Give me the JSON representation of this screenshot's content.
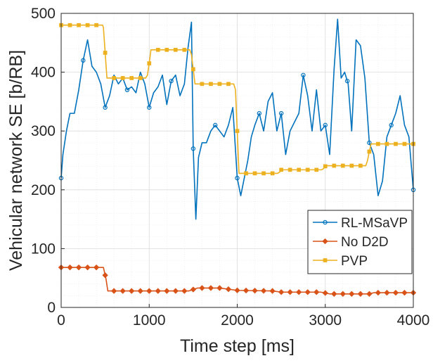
{
  "chart_data": {
    "type": "line",
    "title": "",
    "xlabel": "Time step [ms]",
    "ylabel": "Vehicular network SE [b/RB]",
    "xlim": [
      0,
      4000
    ],
    "ylim": [
      0,
      500
    ],
    "xticks": [
      0,
      1000,
      2000,
      3000,
      4000
    ],
    "yticks": [
      0,
      100,
      200,
      300,
      400,
      500
    ],
    "x_tick_labels": [
      "0",
      "1000",
      "2000",
      "3000",
      "4000"
    ],
    "y_tick_labels": [
      "0",
      "100",
      "200",
      "300",
      "400",
      "500"
    ],
    "grid": true,
    "legend_position": "bottom-right",
    "series": [
      {
        "name": "RL-MSaVP",
        "color": "#0072BD",
        "marker": "circle",
        "x": [
          0,
          20,
          60,
          100,
          150,
          200,
          250,
          300,
          350,
          400,
          450,
          500,
          550,
          600,
          650,
          700,
          750,
          800,
          850,
          900,
          950,
          1000,
          1050,
          1100,
          1150,
          1200,
          1250,
          1300,
          1350,
          1400,
          1440,
          1480,
          1500,
          1530,
          1560,
          1600,
          1650,
          1700,
          1750,
          1800,
          1850,
          1900,
          1950,
          2000,
          2040,
          2080,
          2120,
          2160,
          2200,
          2250,
          2300,
          2350,
          2400,
          2450,
          2500,
          2550,
          2600,
          2650,
          2700,
          2750,
          2800,
          2850,
          2900,
          2950,
          3000,
          3050,
          3100,
          3140,
          3180,
          3220,
          3260,
          3300,
          3350,
          3400,
          3450,
          3500,
          3550,
          3600,
          3650,
          3700,
          3750,
          3800,
          3850,
          3900,
          3950,
          4000
        ],
        "y": [
          220,
          260,
          300,
          330,
          330,
          370,
          420,
          455,
          410,
          400,
          380,
          340,
          360,
          395,
          380,
          390,
          370,
          375,
          365,
          400,
          380,
          340,
          365,
          375,
          395,
          345,
          385,
          395,
          360,
          380,
          440,
          485,
          270,
          150,
          255,
          280,
          280,
          300,
          310,
          300,
          290,
          310,
          340,
          220,
          190,
          220,
          250,
          290,
          310,
          330,
          300,
          350,
          365,
          300,
          330,
          260,
          300,
          315,
          330,
          395,
          360,
          300,
          370,
          300,
          310,
          260,
          405,
          490,
          390,
          400,
          380,
          300,
          455,
          445,
          390,
          280,
          260,
          190,
          215,
          290,
          310,
          330,
          360,
          310,
          290,
          200
        ],
        "marked_x": [
          0,
          250,
          500,
          750,
          1000,
          1250,
          1500,
          1750,
          2000,
          2250,
          2500,
          2750,
          3000,
          3250,
          3500,
          3750,
          4000
        ]
      },
      {
        "name": "No D2D",
        "color": "#D95319",
        "marker": "diamond",
        "x": [
          0,
          480,
          510,
          530,
          1450,
          1550,
          1800,
          2000,
          2400,
          2500,
          2950,
          3050,
          3500,
          3550,
          4000
        ],
        "y": [
          68,
          68,
          48,
          28,
          28,
          33,
          33,
          29,
          28,
          26,
          26,
          23,
          23,
          25,
          25
        ],
        "marked_x": [
          0,
          100,
          200,
          300,
          400,
          500,
          600,
          700,
          800,
          900,
          1000,
          1100,
          1200,
          1300,
          1400,
          1500,
          1600,
          1700,
          1800,
          1900,
          2000,
          2100,
          2200,
          2300,
          2400,
          2500,
          2600,
          2700,
          2800,
          2900,
          3000,
          3100,
          3200,
          3300,
          3400,
          3500,
          3600,
          3700,
          3800,
          3900,
          4000
        ]
      },
      {
        "name": "PVP",
        "color": "#EDB120",
        "marker": "square",
        "x": [
          0,
          470,
          480,
          500,
          520,
          960,
          980,
          1000,
          1020,
          1460,
          1480,
          1500,
          1520,
          1960,
          1980,
          2000,
          2020,
          2460,
          2480,
          2500,
          2520,
          2960,
          2980,
          3000,
          3020,
          3460,
          3480,
          3500,
          3520,
          4000
        ],
        "y": [
          480,
          480,
          476,
          433,
          390,
          390,
          395,
          415,
          438,
          438,
          430,
          405,
          380,
          380,
          370,
          300,
          228,
          228,
          230,
          234,
          234,
          234,
          236,
          240,
          241,
          241,
          250,
          265,
          278,
          278
        ],
        "marked_x": [
          0,
          100,
          200,
          300,
          400,
          500,
          600,
          700,
          800,
          900,
          1000,
          1100,
          1200,
          1300,
          1400,
          1500,
          1600,
          1700,
          1800,
          1900,
          2000,
          2100,
          2200,
          2300,
          2400,
          2500,
          2600,
          2700,
          2800,
          2900,
          3000,
          3100,
          3200,
          3300,
          3400,
          3500,
          3600,
          3700,
          3800,
          3900,
          4000
        ]
      }
    ]
  }
}
